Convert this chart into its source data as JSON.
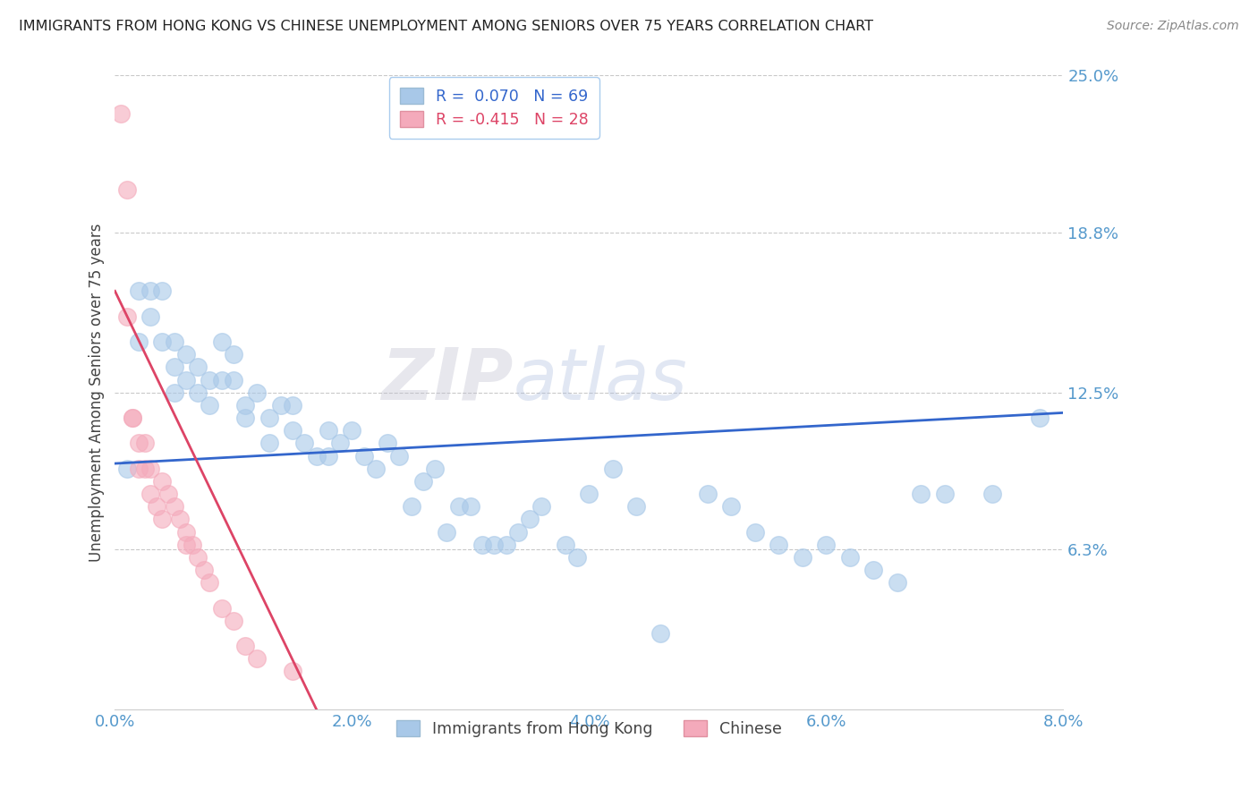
{
  "title": "IMMIGRANTS FROM HONG KONG VS CHINESE UNEMPLOYMENT AMONG SENIORS OVER 75 YEARS CORRELATION CHART",
  "source": "Source: ZipAtlas.com",
  "ylabel": "Unemployment Among Seniors over 75 years",
  "xlim": [
    0.0,
    0.08
  ],
  "ylim": [
    0.0,
    0.25
  ],
  "yticks": [
    0.063,
    0.125,
    0.188,
    0.25
  ],
  "ytick_labels": [
    "6.3%",
    "12.5%",
    "18.8%",
    "25.0%"
  ],
  "xticks": [
    0.0,
    0.02,
    0.04,
    0.06,
    0.08
  ],
  "xtick_labels": [
    "0.0%",
    "2.0%",
    "4.0%",
    "6.0%",
    "8.0%"
  ],
  "blue_R": 0.07,
  "blue_N": 69,
  "pink_R": -0.415,
  "pink_N": 28,
  "blue_color": "#A8C8E8",
  "pink_color": "#F4AABB",
  "blue_line_color": "#3366CC",
  "pink_line_color": "#DD4466",
  "watermark_zip": "ZIP",
  "watermark_atlas": "atlas",
  "legend_label_blue": "Immigrants from Hong Kong",
  "legend_label_pink": "Chinese",
  "blue_scatter_x": [
    0.001,
    0.002,
    0.002,
    0.003,
    0.003,
    0.004,
    0.004,
    0.005,
    0.005,
    0.005,
    0.006,
    0.006,
    0.007,
    0.007,
    0.008,
    0.008,
    0.009,
    0.009,
    0.01,
    0.01,
    0.011,
    0.011,
    0.012,
    0.013,
    0.013,
    0.014,
    0.015,
    0.015,
    0.016,
    0.017,
    0.018,
    0.018,
    0.019,
    0.02,
    0.021,
    0.022,
    0.023,
    0.024,
    0.025,
    0.026,
    0.027,
    0.028,
    0.029,
    0.03,
    0.031,
    0.032,
    0.033,
    0.034,
    0.035,
    0.036,
    0.038,
    0.039,
    0.04,
    0.042,
    0.044,
    0.046,
    0.05,
    0.052,
    0.054,
    0.056,
    0.058,
    0.06,
    0.062,
    0.064,
    0.066,
    0.068,
    0.07,
    0.074,
    0.078
  ],
  "blue_scatter_y": [
    0.095,
    0.165,
    0.145,
    0.165,
    0.155,
    0.145,
    0.165,
    0.145,
    0.135,
    0.125,
    0.14,
    0.13,
    0.135,
    0.125,
    0.13,
    0.12,
    0.145,
    0.13,
    0.13,
    0.14,
    0.115,
    0.12,
    0.125,
    0.105,
    0.115,
    0.12,
    0.11,
    0.12,
    0.105,
    0.1,
    0.1,
    0.11,
    0.105,
    0.11,
    0.1,
    0.095,
    0.105,
    0.1,
    0.08,
    0.09,
    0.095,
    0.07,
    0.08,
    0.08,
    0.065,
    0.065,
    0.065,
    0.07,
    0.075,
    0.08,
    0.065,
    0.06,
    0.085,
    0.095,
    0.08,
    0.03,
    0.085,
    0.08,
    0.07,
    0.065,
    0.06,
    0.065,
    0.06,
    0.055,
    0.05,
    0.085,
    0.085,
    0.085,
    0.115
  ],
  "pink_scatter_x": [
    0.0005,
    0.001,
    0.001,
    0.0015,
    0.0015,
    0.002,
    0.002,
    0.0025,
    0.0025,
    0.003,
    0.003,
    0.0035,
    0.004,
    0.004,
    0.0045,
    0.005,
    0.0055,
    0.006,
    0.006,
    0.0065,
    0.007,
    0.0075,
    0.008,
    0.009,
    0.01,
    0.011,
    0.012,
    0.015
  ],
  "pink_scatter_y": [
    0.235,
    0.205,
    0.155,
    0.115,
    0.115,
    0.105,
    0.095,
    0.105,
    0.095,
    0.095,
    0.085,
    0.08,
    0.075,
    0.09,
    0.085,
    0.08,
    0.075,
    0.065,
    0.07,
    0.065,
    0.06,
    0.055,
    0.05,
    0.04,
    0.035,
    0.025,
    0.02,
    0.015
  ],
  "blue_line_x": [
    0.0,
    0.08
  ],
  "blue_line_y": [
    0.097,
    0.117
  ],
  "pink_line_x": [
    0.0,
    0.017
  ],
  "pink_line_y": [
    0.165,
    0.0
  ]
}
